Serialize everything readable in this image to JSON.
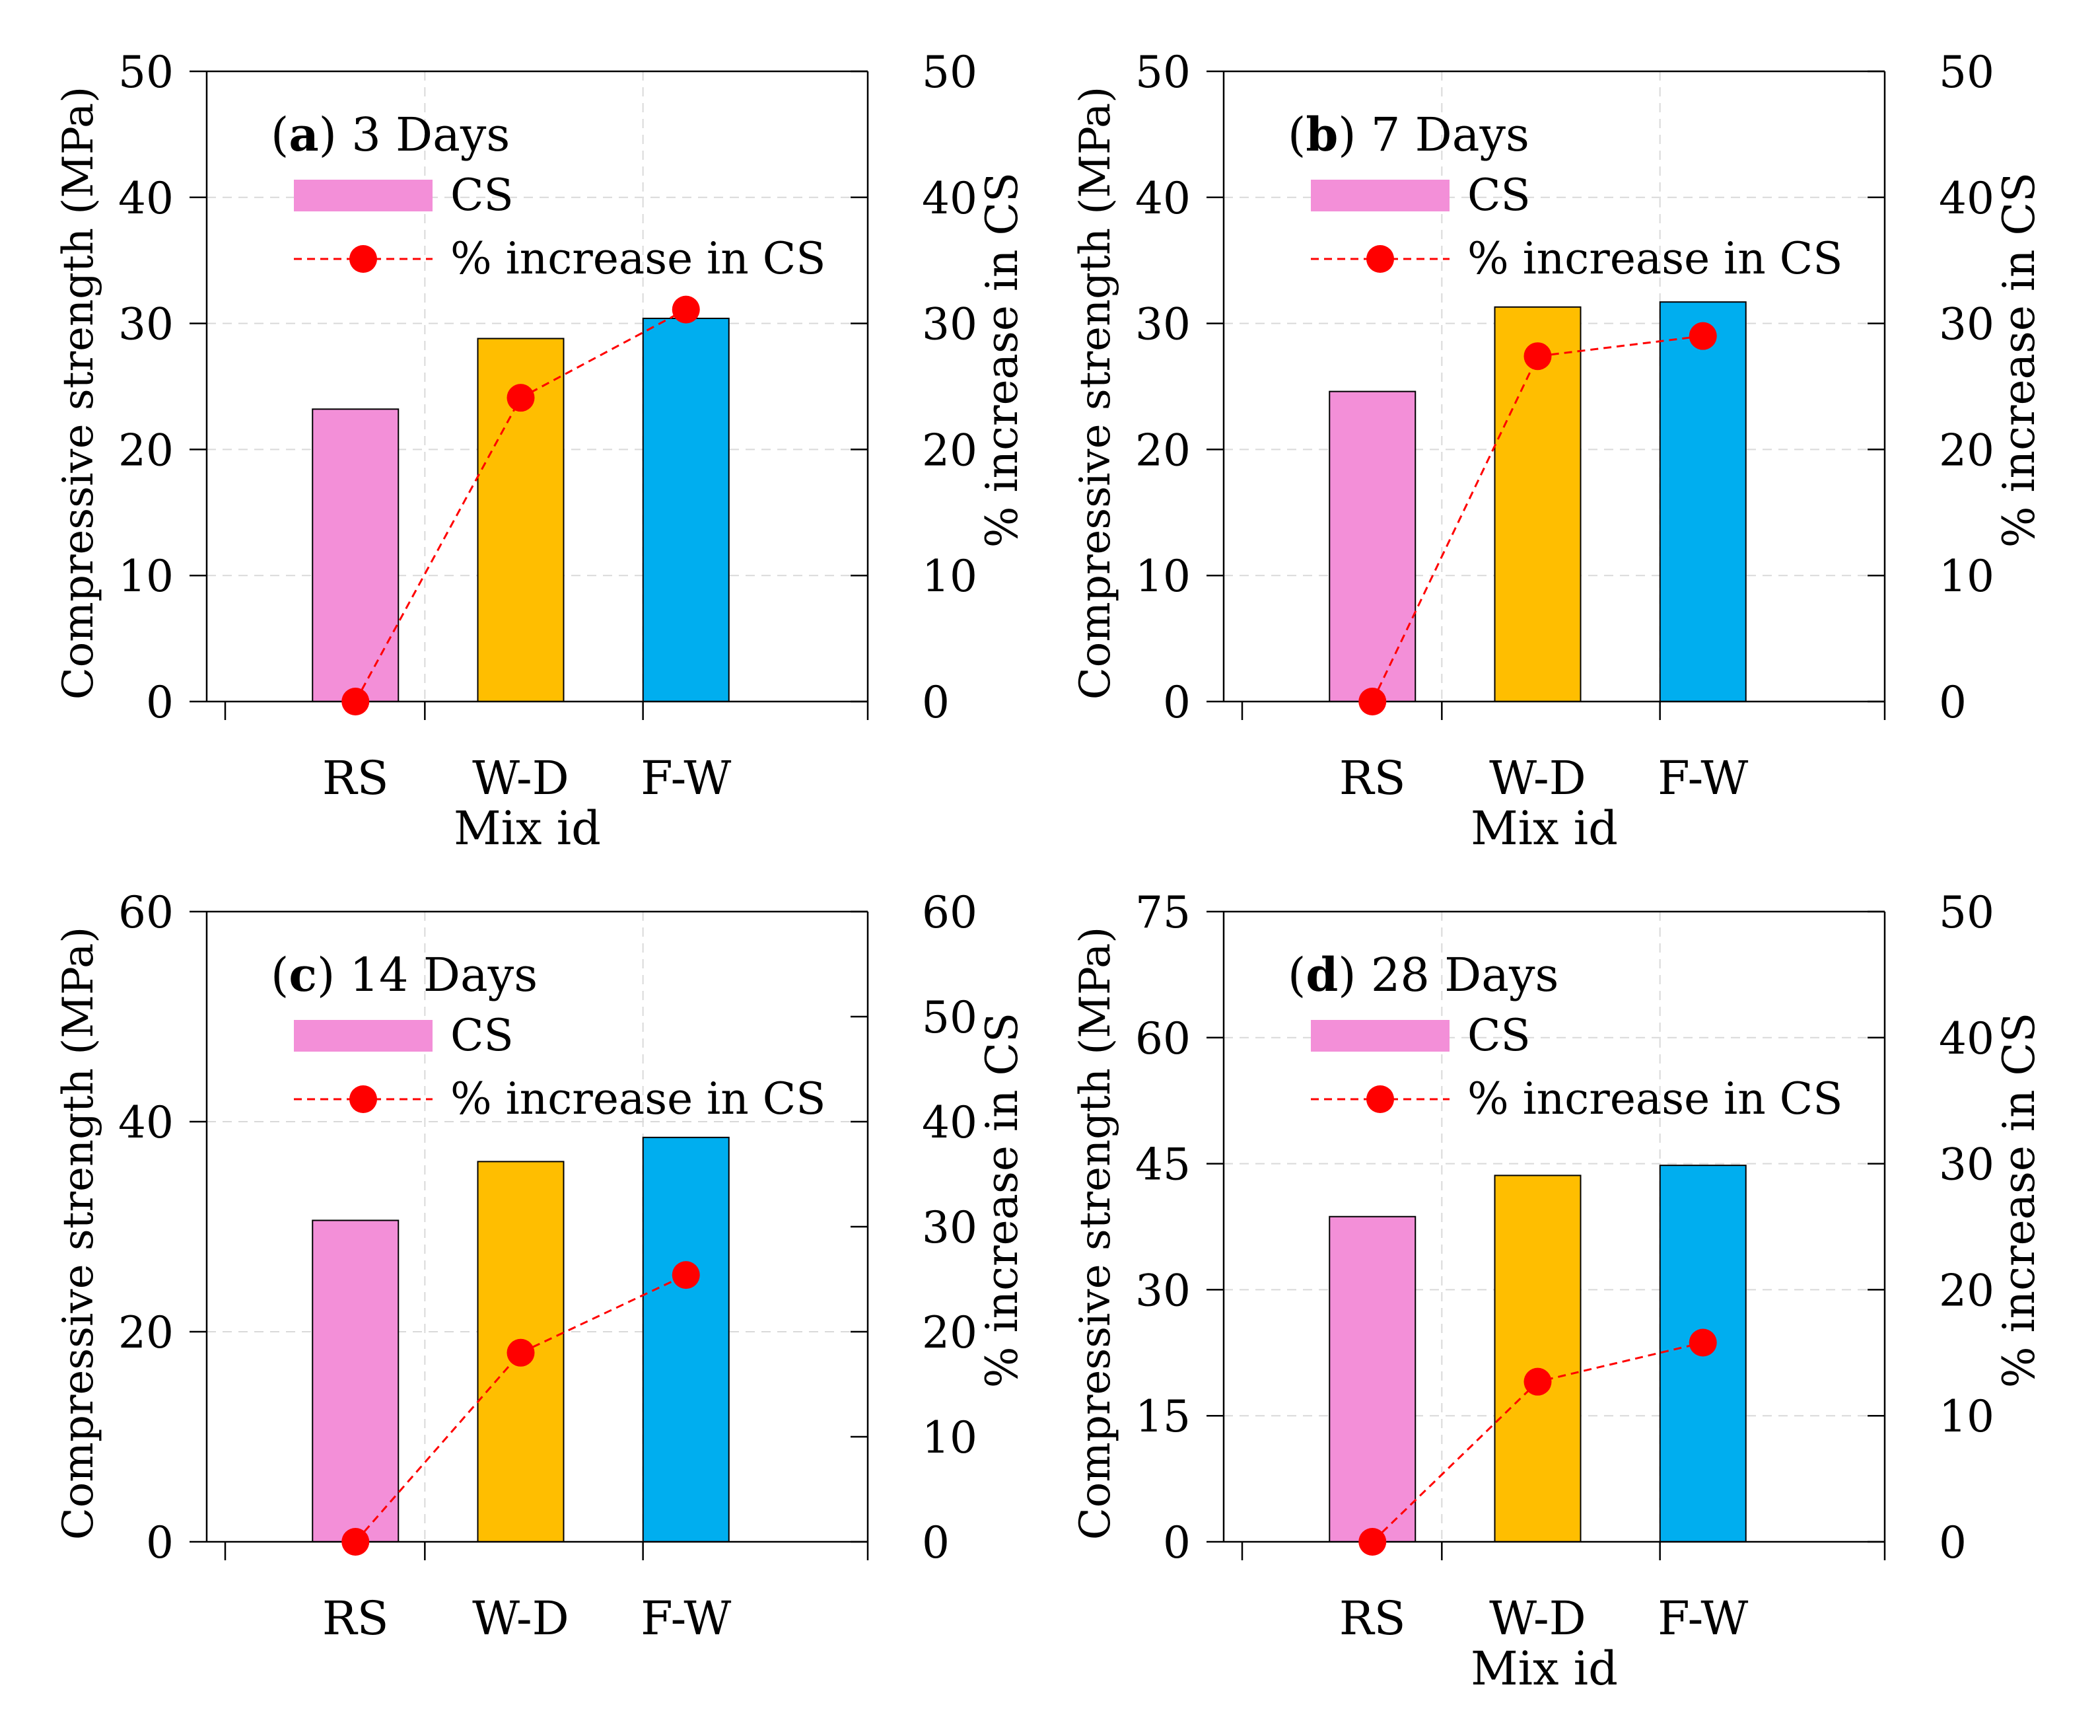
{
  "chart_data": [
    {
      "type": "bar",
      "panel_letter": "a",
      "title_rest": ") 3 Days",
      "categories": [
        "RS",
        "W-D",
        "F-W"
      ],
      "bar_colors": [
        "#f38fd8",
        "#ffbe00",
        "#00aeef"
      ],
      "line_color": "#ff0000",
      "series": [
        {
          "name": "CS",
          "axis": "left",
          "values": [
            23.2,
            28.8,
            30.4
          ]
        },
        {
          "name": "% increase in CS",
          "axis": "right",
          "values": [
            0,
            24.1,
            31.1
          ]
        }
      ],
      "xlabel": "Mix id",
      "ylabel": "Compressive strength (MPa)",
      "y2label": "% increase in CS",
      "ylim": [
        0,
        50
      ],
      "yticks": [
        0,
        10,
        20,
        30,
        40,
        50
      ],
      "y2lim": [
        0,
        50
      ],
      "y2ticks": [
        0,
        10,
        20,
        30,
        40,
        50
      ],
      "grid": true,
      "legend_position": "top-left"
    },
    {
      "type": "bar",
      "panel_letter": "b",
      "title_rest": ") 7 Days",
      "categories": [
        "RS",
        "W-D",
        "F-W"
      ],
      "bar_colors": [
        "#f38fd8",
        "#ffbe00",
        "#00aeef"
      ],
      "line_color": "#ff0000",
      "series": [
        {
          "name": "CS",
          "axis": "left",
          "values": [
            24.6,
            31.3,
            31.7
          ]
        },
        {
          "name": "% increase in CS",
          "axis": "right",
          "values": [
            0,
            27.4,
            29.0
          ]
        }
      ],
      "xlabel": "Mix id",
      "ylabel": "Compressive strength (MPa)",
      "y2label": "% increase in CS",
      "ylim": [
        0,
        50
      ],
      "yticks": [
        0,
        10,
        20,
        30,
        40,
        50
      ],
      "y2lim": [
        0,
        50
      ],
      "y2ticks": [
        0,
        10,
        20,
        30,
        40,
        50
      ],
      "grid": true,
      "legend_position": "top-left"
    },
    {
      "type": "bar",
      "panel_letter": "c",
      "title_rest": ") 14 Days",
      "categories": [
        "RS",
        "W-D",
        "F-W"
      ],
      "bar_colors": [
        "#f38fd8",
        "#ffbe00",
        "#00aeef"
      ],
      "line_color": "#ff0000",
      "series": [
        {
          "name": "CS",
          "axis": "left",
          "values": [
            30.6,
            36.2,
            38.5
          ]
        },
        {
          "name": "% increase in CS",
          "axis": "right",
          "values": [
            0,
            18.0,
            25.4
          ]
        }
      ],
      "xlabel": "",
      "ylabel": "Compressive strength (MPa)",
      "y2label": "% increase in CS",
      "ylim": [
        0,
        60
      ],
      "yticks": [
        0,
        20,
        40,
        60
      ],
      "y2lim": [
        0,
        60
      ],
      "y2ticks": [
        0,
        10,
        20,
        30,
        40,
        50,
        60
      ],
      "grid": true,
      "legend_position": "top-left"
    },
    {
      "type": "bar",
      "panel_letter": "d",
      "title_rest": ") 28 Days",
      "categories": [
        "RS",
        "W-D",
        "F-W"
      ],
      "bar_colors": [
        "#f38fd8",
        "#ffbe00",
        "#00aeef"
      ],
      "line_color": "#ff0000",
      "series": [
        {
          "name": "CS",
          "axis": "left",
          "values": [
            38.7,
            43.6,
            44.8
          ]
        },
        {
          "name": "% increase in CS",
          "axis": "right",
          "values": [
            0,
            12.7,
            15.8
          ]
        }
      ],
      "xlabel": "Mix id",
      "ylabel": "Compressive strength (MPa)",
      "y2label": "% increase in CS",
      "ylim": [
        0,
        75
      ],
      "yticks": [
        0,
        15,
        30,
        45,
        60,
        75
      ],
      "y2lim": [
        0,
        50
      ],
      "y2ticks": [
        0,
        10,
        20,
        30,
        40,
        50
      ],
      "grid": true,
      "legend_position": "top-left"
    }
  ]
}
